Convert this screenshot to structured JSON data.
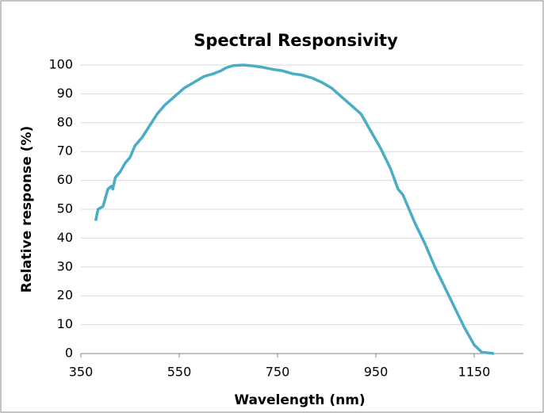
{
  "chart_data": {
    "type": "line",
    "title": "Spectral Responsivity",
    "x_label": "Wavelength (nm)",
    "y_label": "Relative response (%)",
    "x": [
      380,
      385,
      395,
      405,
      412,
      415,
      420,
      430,
      440,
      450,
      460,
      475,
      490,
      505,
      520,
      540,
      560,
      580,
      600,
      620,
      635,
      645,
      660,
      680,
      700,
      720,
      740,
      760,
      780,
      800,
      820,
      840,
      860,
      880,
      900,
      920,
      940,
      960,
      980,
      995,
      1000,
      1005,
      1015,
      1030,
      1050,
      1070,
      1090,
      1110,
      1130,
      1150,
      1165,
      1190
    ],
    "series": [
      {
        "name": "Relative response",
        "color": "#4bacc6",
        "values": [
          46,
          50,
          51,
          57,
          58,
          57,
          61,
          63,
          66,
          68,
          72,
          75,
          79,
          83,
          86,
          89,
          92,
          94,
          96,
          97,
          98,
          99,
          99.8,
          100,
          99.7,
          99.2,
          98.5,
          98,
          97,
          96.5,
          95.5,
          94,
          92,
          89,
          86,
          83,
          77,
          71,
          64,
          57,
          56,
          55,
          51,
          45,
          38,
          30,
          23,
          16,
          9,
          3,
          0.5,
          0
        ]
      }
    ],
    "xlim": [
      350,
      1250
    ],
    "ylim": [
      0,
      100
    ],
    "xticks": [
      350,
      550,
      750,
      950,
      1150
    ],
    "yticks": [
      0,
      10,
      20,
      30,
      40,
      50,
      60,
      70,
      80,
      90,
      100
    ],
    "grid": true
  }
}
